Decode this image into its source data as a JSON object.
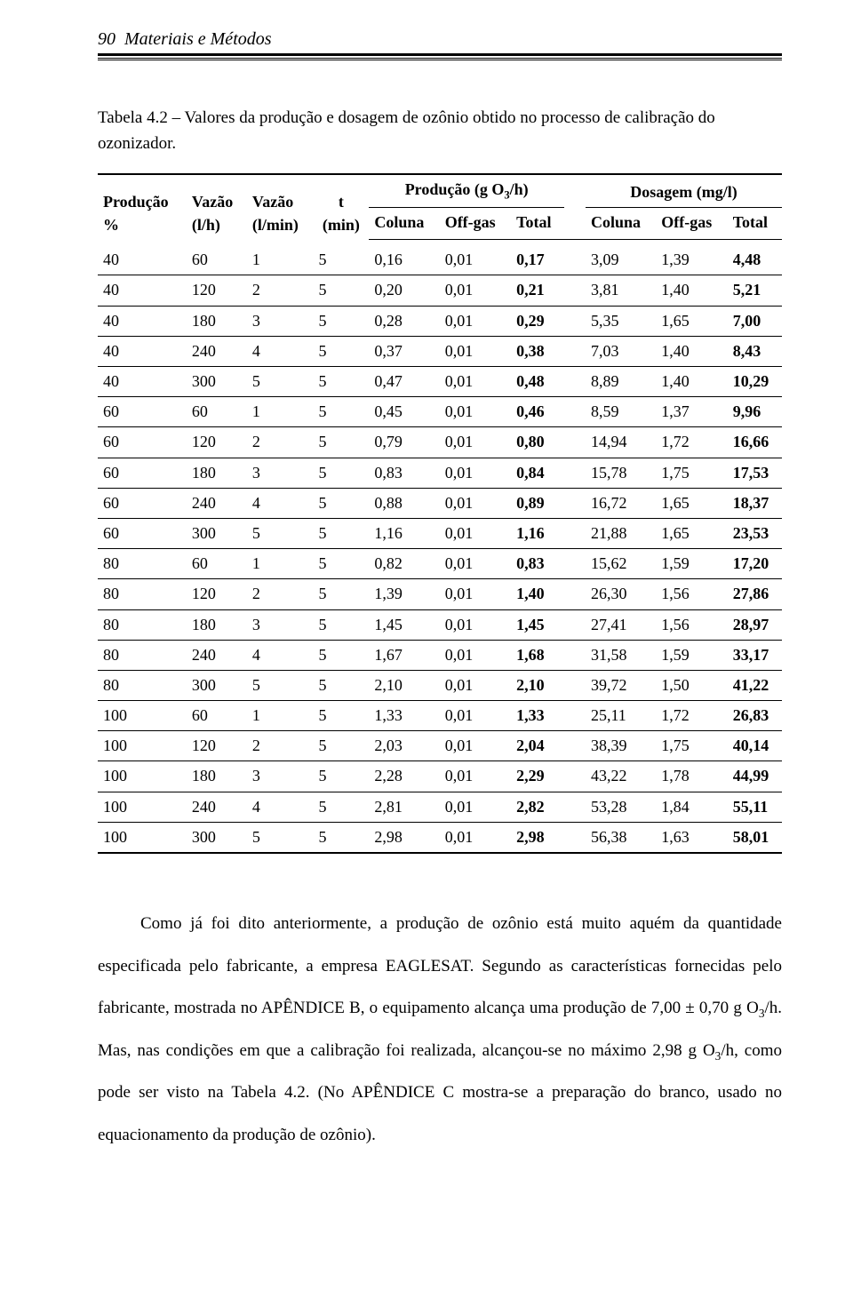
{
  "header": {
    "page_number": "90",
    "section_title": "Materiais e Métodos"
  },
  "caption": {
    "prefix": "Tabela 4.2 – ",
    "text": "Valores da produção e dosagem de ozônio obtido no processo de calibração do ozonizador."
  },
  "table": {
    "group_producao": "Produção (g O",
    "group_producao_sub": "3",
    "group_producao_suffix": "/h)",
    "group_dosagem": "Dosagem (mg/l)",
    "col_producao_pct_l1": "Produção",
    "col_producao_pct_l2": "%",
    "col_vazao_lh_l1": "Vazão",
    "col_vazao_lh_l2": "(l/h)",
    "col_vazao_lmin_l1": "Vazão",
    "col_vazao_lmin_l2": "(l/min)",
    "col_t_l1": "t",
    "col_t_l2": "(min)",
    "col_coluna": "Coluna",
    "col_offgas": "Off-gas",
    "col_total": "Total",
    "rows": [
      {
        "p": "40",
        "vlh": "60",
        "vlm": "1",
        "t": "5",
        "pc": "0,16",
        "po": "0,01",
        "pt": "0,17",
        "dc": "3,09",
        "do": "1,39",
        "dt": "4,48"
      },
      {
        "p": "40",
        "vlh": "120",
        "vlm": "2",
        "t": "5",
        "pc": "0,20",
        "po": "0,01",
        "pt": "0,21",
        "dc": "3,81",
        "do": "1,40",
        "dt": "5,21"
      },
      {
        "p": "40",
        "vlh": "180",
        "vlm": "3",
        "t": "5",
        "pc": "0,28",
        "po": "0,01",
        "pt": "0,29",
        "dc": "5,35",
        "do": "1,65",
        "dt": "7,00"
      },
      {
        "p": "40",
        "vlh": "240",
        "vlm": "4",
        "t": "5",
        "pc": "0,37",
        "po": "0,01",
        "pt": "0,38",
        "dc": "7,03",
        "do": "1,40",
        "dt": "8,43"
      },
      {
        "p": "40",
        "vlh": "300",
        "vlm": "5",
        "t": "5",
        "pc": "0,47",
        "po": "0,01",
        "pt": "0,48",
        "dc": "8,89",
        "do": "1,40",
        "dt": "10,29"
      },
      {
        "p": "60",
        "vlh": "60",
        "vlm": "1",
        "t": "5",
        "pc": "0,45",
        "po": "0,01",
        "pt": "0,46",
        "dc": "8,59",
        "do": "1,37",
        "dt": "9,96"
      },
      {
        "p": "60",
        "vlh": "120",
        "vlm": "2",
        "t": "5",
        "pc": "0,79",
        "po": "0,01",
        "pt": "0,80",
        "dc": "14,94",
        "do": "1,72",
        "dt": "16,66"
      },
      {
        "p": "60",
        "vlh": "180",
        "vlm": "3",
        "t": "5",
        "pc": "0,83",
        "po": "0,01",
        "pt": "0,84",
        "dc": "15,78",
        "do": "1,75",
        "dt": "17,53"
      },
      {
        "p": "60",
        "vlh": "240",
        "vlm": "4",
        "t": "5",
        "pc": "0,88",
        "po": "0,01",
        "pt": "0,89",
        "dc": "16,72",
        "do": "1,65",
        "dt": "18,37"
      },
      {
        "p": "60",
        "vlh": "300",
        "vlm": "5",
        "t": "5",
        "pc": "1,16",
        "po": "0,01",
        "pt": "1,16",
        "dc": "21,88",
        "do": "1,65",
        "dt": "23,53"
      },
      {
        "p": "80",
        "vlh": "60",
        "vlm": "1",
        "t": "5",
        "pc": "0,82",
        "po": "0,01",
        "pt": "0,83",
        "dc": "15,62",
        "do": "1,59",
        "dt": "17,20"
      },
      {
        "p": "80",
        "vlh": "120",
        "vlm": "2",
        "t": "5",
        "pc": "1,39",
        "po": "0,01",
        "pt": "1,40",
        "dc": "26,30",
        "do": "1,56",
        "dt": "27,86"
      },
      {
        "p": "80",
        "vlh": "180",
        "vlm": "3",
        "t": "5",
        "pc": "1,45",
        "po": "0,01",
        "pt": "1,45",
        "dc": "27,41",
        "do": "1,56",
        "dt": "28,97"
      },
      {
        "p": "80",
        "vlh": "240",
        "vlm": "4",
        "t": "5",
        "pc": "1,67",
        "po": "0,01",
        "pt": "1,68",
        "dc": "31,58",
        "do": "1,59",
        "dt": "33,17"
      },
      {
        "p": "80",
        "vlh": "300",
        "vlm": "5",
        "t": "5",
        "pc": "2,10",
        "po": "0,01",
        "pt": "2,10",
        "dc": "39,72",
        "do": "1,50",
        "dt": "41,22"
      },
      {
        "p": "100",
        "vlh": "60",
        "vlm": "1",
        "t": "5",
        "pc": "1,33",
        "po": "0,01",
        "pt": "1,33",
        "dc": "25,11",
        "do": "1,72",
        "dt": "26,83"
      },
      {
        "p": "100",
        "vlh": "120",
        "vlm": "2",
        "t": "5",
        "pc": "2,03",
        "po": "0,01",
        "pt": "2,04",
        "dc": "38,39",
        "do": "1,75",
        "dt": "40,14"
      },
      {
        "p": "100",
        "vlh": "180",
        "vlm": "3",
        "t": "5",
        "pc": "2,28",
        "po": "0,01",
        "pt": "2,29",
        "dc": "43,22",
        "do": "1,78",
        "dt": "44,99"
      },
      {
        "p": "100",
        "vlh": "240",
        "vlm": "4",
        "t": "5",
        "pc": "2,81",
        "po": "0,01",
        "pt": "2,82",
        "dc": "53,28",
        "do": "1,84",
        "dt": "55,11"
      },
      {
        "p": "100",
        "vlh": "300",
        "vlm": "5",
        "t": "5",
        "pc": "2,98",
        "po": "0,01",
        "pt": "2,98",
        "dc": "56,38",
        "do": "1,63",
        "dt": "58,01"
      }
    ]
  },
  "paragraph": {
    "t1": "Como já foi dito anteriormente, a produção de ozônio está muito aquém da quantidade especificada pelo fabricante, a empresa EAGLESAT. Segundo as características fornecidas pelo fabricante, mostrada no APÊNDICE B, o equipamento alcança uma produção de 7,00 ± 0,70 g O",
    "sub1": "3",
    "t2": "/h. Mas, nas condições em que a calibração foi realizada, alcançou-se no máximo 2,98 g O",
    "sub2": "3",
    "t3": "/h, como pode ser visto na Tabela 4.2. (No APÊNDICE C mostra-se a preparação do branco, usado no equacionamento da produção de ozônio)."
  }
}
